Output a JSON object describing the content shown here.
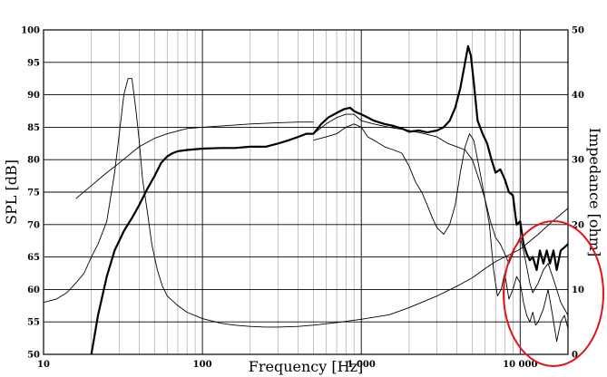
{
  "chart_data": {
    "type": "line",
    "xlabel": "Frequency [Hz]",
    "ylabel": "SPL [dB]",
    "y2label": "Impedance [ohm]",
    "x_scale": "log",
    "xlim": [
      10,
      20000
    ],
    "ylim": [
      50,
      100
    ],
    "y2lim": [
      0,
      50
    ],
    "grid": true,
    "x_ticks": [
      {
        "value": 10,
        "label": "10"
      },
      {
        "value": 100,
        "label": "100"
      },
      {
        "value": 1000,
        "label": "1 000"
      },
      {
        "value": 10000,
        "label": "10 000"
      }
    ],
    "y_ticks": [
      50,
      55,
      60,
      65,
      70,
      75,
      80,
      85,
      90,
      95,
      100
    ],
    "y2_ticks": [
      0,
      10,
      20,
      30,
      40,
      50
    ],
    "annotation_color": "#e0161d",
    "series": [
      {
        "axis": "left",
        "style": "thick",
        "x": [
          20,
          22,
          25,
          28,
          32,
          36,
          40,
          45,
          50,
          55,
          60,
          65,
          70,
          80,
          100,
          130,
          160,
          200,
          250,
          300,
          350,
          400,
          450,
          500,
          560,
          620,
          700,
          780,
          850,
          900,
          950,
          1000,
          1100,
          1200,
          1400,
          1600,
          1800,
          2000,
          2300,
          2600,
          3000,
          3300,
          3600,
          3900,
          4200,
          4500,
          4700,
          4900,
          5100,
          5400,
          5800,
          6200,
          6600,
          7000,
          7500,
          8000,
          8500,
          9000,
          9500,
          10000,
          10500,
          11000,
          11500,
          12000,
          12700,
          13300,
          14000,
          14700,
          15400,
          16200,
          17000,
          18000,
          19000,
          20000
        ],
        "y": [
          50,
          56,
          62,
          66,
          69,
          71,
          73,
          75.5,
          77.5,
          79.5,
          80.5,
          81,
          81.3,
          81.5,
          81.7,
          81.8,
          81.8,
          82,
          82,
          82.5,
          83,
          83.5,
          84,
          84,
          85.5,
          86.5,
          87.2,
          87.8,
          88,
          87.5,
          87.2,
          87,
          86.5,
          86,
          85.5,
          85.2,
          84.8,
          84.3,
          84.5,
          84.2,
          84.5,
          85,
          86,
          88,
          91,
          95,
          97.5,
          96,
          92,
          86,
          84,
          82.5,
          80,
          78,
          78.5,
          77,
          75,
          74.5,
          70,
          70.5,
          67,
          65.5,
          64.5,
          65,
          63,
          66,
          64,
          66,
          64,
          66,
          63,
          66,
          66.5,
          67
        ]
      },
      {
        "axis": "left",
        "style": "thin",
        "x": [
          16,
          20,
          25,
          30,
          40,
          50,
          60,
          80,
          100,
          150,
          200,
          300,
          400,
          500
        ],
        "y": [
          74,
          76,
          78,
          79.5,
          82,
          83.3,
          84,
          84.8,
          85,
          85.3,
          85.5,
          85.7,
          85.8,
          85.8
        ]
      },
      {
        "axis": "left",
        "style": "thin",
        "x": [
          500,
          600,
          700,
          800,
          900,
          1000,
          1200,
          1500,
          2000,
          2500,
          3000,
          3500,
          4000,
          4500,
          5000,
          5500,
          6000,
          6500,
          7000,
          7500,
          8000,
          8500,
          9000,
          9500,
          10000,
          10500,
          11000,
          11500,
          12000,
          13000,
          14000,
          15000,
          16000,
          17000,
          18000,
          19000,
          20000
        ],
        "y": [
          84,
          85.5,
          86.5,
          87,
          87,
          86,
          85.5,
          85,
          84.5,
          84,
          83.5,
          82.5,
          82,
          81.5,
          80,
          77,
          74,
          70.5,
          68,
          67,
          65.5,
          64,
          65.5,
          67,
          68,
          66,
          63.5,
          61,
          59.5,
          61,
          63,
          64,
          62,
          60,
          58,
          57,
          56
        ]
      },
      {
        "axis": "left",
        "style": "thin",
        "x": [
          500,
          600,
          700,
          800,
          900,
          1000,
          1100,
          1200,
          1400,
          1600,
          1800,
          2000,
          2200,
          2400,
          2600,
          2800,
          3000,
          3300,
          3600,
          3900,
          4200,
          4500,
          4800,
          5100,
          5400,
          5700,
          6000,
          6400,
          6800,
          7200,
          7600,
          8000,
          8500,
          9000,
          9500,
          10000,
          10500,
          11000,
          11500,
          12000,
          12500,
          13000,
          14000,
          15000,
          16000,
          17000,
          18000,
          19000,
          20000
        ],
        "y": [
          83,
          83.5,
          84,
          85,
          85.5,
          85,
          83.5,
          83,
          82,
          81.5,
          81,
          79,
          76.5,
          75,
          73,
          71,
          69.5,
          68.5,
          70,
          73,
          78,
          82,
          84,
          83,
          80,
          77,
          74,
          70,
          63,
          59,
          60,
          62.5,
          58.5,
          60,
          62,
          61,
          58,
          56,
          55,
          56.5,
          54.5,
          55,
          57,
          60,
          56,
          52,
          55,
          56,
          54
        ]
      },
      {
        "axis": "right",
        "style": "thin",
        "x": [
          10,
          12,
          14,
          16,
          18,
          20,
          22,
          25,
          28,
          30,
          32,
          34,
          36,
          38,
          40,
          42,
          45,
          48,
          52,
          56,
          60,
          70,
          80,
          100,
          130,
          160,
          200,
          250,
          300,
          400,
          500,
          700,
          1000,
          1500,
          2000,
          3000,
          4000,
          5000,
          6000,
          7000,
          8000,
          10000,
          13000,
          16000,
          20000
        ],
        "y": [
          8,
          8.5,
          9.5,
          11,
          12.5,
          15,
          17,
          20.5,
          28,
          34,
          40,
          42.5,
          42.5,
          38,
          33,
          27,
          22,
          17,
          13,
          10.5,
          9,
          7.5,
          6.5,
          5.5,
          4.8,
          4.5,
          4.3,
          4.2,
          4.2,
          4.3,
          4.5,
          4.9,
          5.4,
          6.1,
          7.2,
          9,
          10.5,
          11.8,
          13.2,
          14.3,
          15,
          16.2,
          18.5,
          20.5,
          22.5
        ]
      }
    ]
  }
}
